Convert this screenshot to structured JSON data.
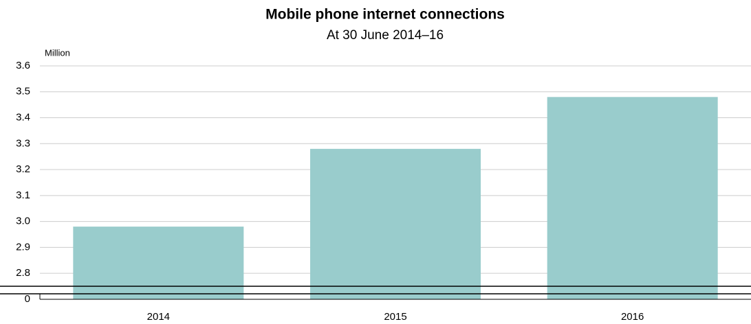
{
  "chart_data": {
    "type": "bar",
    "title": "Mobile phone internet connections",
    "subtitle": "At 30 June 2014–16",
    "y_label": "Million",
    "categories": [
      "2014",
      "2015",
      "2016"
    ],
    "values": [
      2.98,
      3.28,
      3.48
    ],
    "color": "#99cccc",
    "ylim": [
      0,
      3.6
    ],
    "axis_break": [
      0,
      2.75
    ],
    "yticks": [
      0,
      2.8,
      2.9,
      {
        "value": 3,
        "label": "3.0"
      },
      3.1,
      3.2,
      3.3,
      3.4,
      3.5,
      3.6
    ],
    "grid": true
  }
}
